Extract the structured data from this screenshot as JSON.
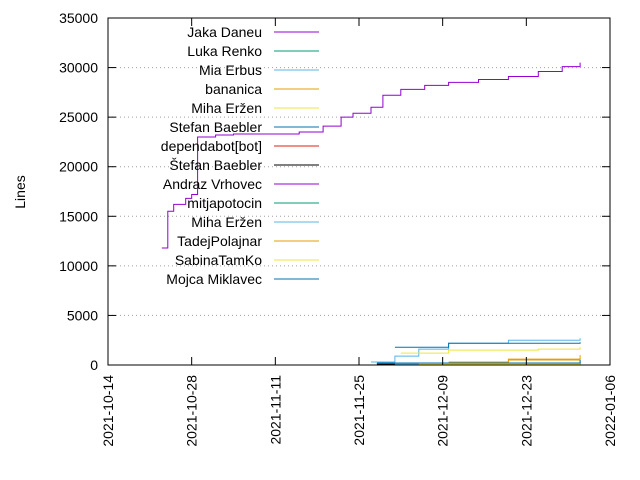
{
  "chart_data": {
    "type": "line",
    "title": "",
    "xlabel": "",
    "ylabel": "Lines",
    "x_type": "date",
    "xlim": [
      "2021-10-14",
      "2022-01-06"
    ],
    "ylim": [
      0,
      35000
    ],
    "x_ticks": [
      "2021-10-14",
      "2021-10-28",
      "2021-11-11",
      "2021-11-25",
      "2021-12-09",
      "2021-12-23",
      "2022-01-06"
    ],
    "y_ticks": [
      "0",
      "5000",
      "10000",
      "15000",
      "20000",
      "25000",
      "30000",
      "35000"
    ],
    "y_tick_values": [
      0,
      5000,
      10000,
      15000,
      20000,
      25000,
      30000,
      35000
    ],
    "grid": "horizontal dotted",
    "legend_position": "top-left",
    "series": [
      {
        "name": "Jaka Daneu",
        "color": "#9400d3",
        "x": [
          "2021-10-23",
          "2021-10-24",
          "2021-10-25",
          "2021-10-27",
          "2021-10-28",
          "2021-10-29",
          "2021-11-01",
          "2021-11-04",
          "2021-11-08",
          "2021-11-11",
          "2021-11-15",
          "2021-11-19",
          "2021-11-22",
          "2021-11-24",
          "2021-11-27",
          "2021-11-29",
          "2021-12-02",
          "2021-12-06",
          "2021-12-10",
          "2021-12-15",
          "2021-12-20",
          "2021-12-25",
          "2021-12-29",
          "2022-01-01"
        ],
        "y": [
          11800,
          15500,
          16200,
          16800,
          17200,
          23000,
          23200,
          23300,
          23300,
          23300,
          23500,
          24100,
          25000,
          25400,
          26000,
          27200,
          27800,
          28200,
          28500,
          28800,
          29100,
          29600,
          30100,
          30500
        ]
      },
      {
        "name": "Luka Renko",
        "color": "#009e73",
        "x": [
          "2021-12-01",
          "2022-01-01"
        ],
        "y": [
          100,
          150
        ]
      },
      {
        "name": "Mia Erbus",
        "color": "#56b4e9",
        "x": [
          "2021-11-27",
          "2021-12-01",
          "2021-12-05",
          "2021-12-10",
          "2021-12-20",
          "2022-01-01"
        ],
        "y": [
          300,
          900,
          1600,
          2200,
          2500,
          2700
        ]
      },
      {
        "name": "bananica",
        "color": "#e69f00",
        "x": [
          "2021-12-10",
          "2021-12-20",
          "2022-01-01"
        ],
        "y": [
          200,
          600,
          1000
        ]
      },
      {
        "name": "Miha Eržen",
        "color": "#f0e442",
        "x": [
          "2021-12-02",
          "2021-12-10",
          "2021-12-25",
          "2022-01-01"
        ],
        "y": [
          1200,
          1500,
          1600,
          1800
        ]
      },
      {
        "name": "Stefan Baebler",
        "color": "#0072b2",
        "x": [
          "2021-12-01",
          "2021-12-10",
          "2022-01-01"
        ],
        "y": [
          1800,
          2200,
          2300
        ]
      },
      {
        "name": "dependabot[bot]",
        "color": "#e51e10",
        "x": [
          "2021-12-01",
          "2022-01-01"
        ],
        "y": [
          50,
          100
        ]
      },
      {
        "name": "Štefan Baebler",
        "color": "#000000",
        "x": [
          "2021-11-28",
          "2022-01-01"
        ],
        "y": [
          100,
          200
        ]
      },
      {
        "name": "Andraz Vrhovec",
        "color": "#9400d3",
        "x": [
          "2021-11-28",
          "2022-01-01"
        ],
        "y": [
          150,
          350
        ]
      },
      {
        "name": "mitjapotocin",
        "color": "#009e73",
        "x": [
          "2021-12-01",
          "2022-01-01"
        ],
        "y": [
          100,
          250
        ]
      },
      {
        "name": "Miha Eržen",
        "color": "#56b4e9",
        "x": [
          "2021-12-01",
          "2022-01-01"
        ],
        "y": [
          100,
          200
        ]
      },
      {
        "name": "TadejPolajnar",
        "color": "#e69f00",
        "x": [
          "2021-12-10",
          "2021-12-20",
          "2022-01-01"
        ],
        "y": [
          300,
          500,
          700
        ]
      },
      {
        "name": "SabinaTamKo",
        "color": "#f0e442",
        "x": [
          "2021-12-05",
          "2022-01-01"
        ],
        "y": [
          100,
          400
        ]
      },
      {
        "name": "Mojca Miklavec",
        "color": "#0072b2",
        "x": [
          "2021-11-28",
          "2022-01-01"
        ],
        "y": [
          200,
          500
        ]
      }
    ]
  }
}
